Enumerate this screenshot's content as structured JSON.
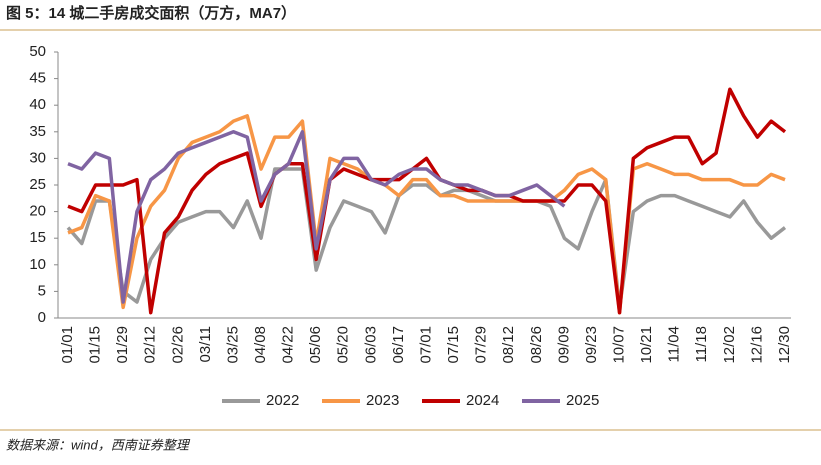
{
  "chart_data": {
    "type": "line",
    "title": "图 5：14 城二手房成交面积（万方，MA7）",
    "source": "数据来源：wind，西南证券整理",
    "categories": [
      "01/01",
      null,
      "01/15",
      null,
      "01/29",
      null,
      "02/12",
      null,
      "02/26",
      null,
      "03/11",
      null,
      "03/25",
      null,
      "04/08",
      null,
      "04/22",
      null,
      "05/06",
      null,
      "05/20",
      null,
      "06/03",
      null,
      "06/17",
      null,
      "07/01",
      null,
      "07/15",
      null,
      "07/29",
      null,
      "08/12",
      null,
      "08/26",
      null,
      "09/09",
      null,
      "09/23",
      null,
      "10/07",
      null,
      "10/21",
      null,
      "11/04",
      null,
      "11/18",
      null,
      "12/02",
      null,
      "12/16",
      null,
      "12/30"
    ],
    "series": [
      {
        "name": "2022",
        "color": "#999999",
        "values": [
          17,
          14,
          22,
          22,
          5,
          3,
          11,
          15,
          18,
          19,
          20,
          20,
          17,
          22,
          15,
          28,
          28,
          28,
          9,
          17,
          22,
          21,
          20,
          16,
          23,
          25,
          25,
          23,
          24,
          24,
          23,
          22,
          22,
          22,
          22,
          21,
          15,
          13,
          20,
          26,
          2,
          20,
          22,
          23,
          23,
          22,
          21,
          20,
          19,
          22,
          18,
          15,
          17
        ]
      },
      {
        "name": "2023",
        "color": "#f79646",
        "values": [
          16,
          17,
          23,
          22,
          2,
          15,
          21,
          24,
          30,
          33,
          34,
          35,
          37,
          38,
          28,
          34,
          34,
          37,
          14,
          30,
          29,
          28,
          26,
          25,
          23,
          26,
          26,
          23,
          23,
          22,
          22,
          22,
          22,
          22,
          22,
          22,
          24,
          27,
          28,
          26,
          1,
          28,
          29,
          28,
          27,
          27,
          26,
          26,
          26,
          25,
          25,
          27,
          26
        ]
      },
      {
        "name": "2024",
        "color": "#c00000",
        "values": [
          21,
          20,
          25,
          25,
          25,
          26,
          1,
          16,
          19,
          24,
          27,
          29,
          30,
          31,
          21,
          27,
          29,
          29,
          11,
          26,
          28,
          27,
          26,
          26,
          26,
          28,
          30,
          26,
          25,
          24,
          24,
          23,
          23,
          22,
          22,
          22,
          22,
          25,
          25,
          22,
          1,
          30,
          32,
          33,
          34,
          34,
          29,
          31,
          43,
          38,
          34,
          37,
          35
        ]
      },
      {
        "name": "2025",
        "color": "#8064a2",
        "values": [
          29,
          28,
          31,
          30,
          3,
          20,
          26,
          28,
          31,
          32,
          33,
          34,
          35,
          34,
          22,
          27,
          29,
          35,
          13,
          26,
          30,
          30,
          26,
          25,
          27,
          28,
          28,
          26,
          25,
          25,
          24,
          23,
          23,
          24,
          25,
          23,
          21,
          null,
          null,
          null,
          null,
          null,
          null,
          null,
          null,
          null,
          null,
          null,
          null,
          null,
          null,
          null,
          null
        ]
      }
    ],
    "ylim": [
      0,
      50
    ],
    "yticks": [
      0,
      5,
      10,
      15,
      20,
      25,
      30,
      35,
      40,
      45,
      50
    ],
    "legend": "bottom"
  }
}
